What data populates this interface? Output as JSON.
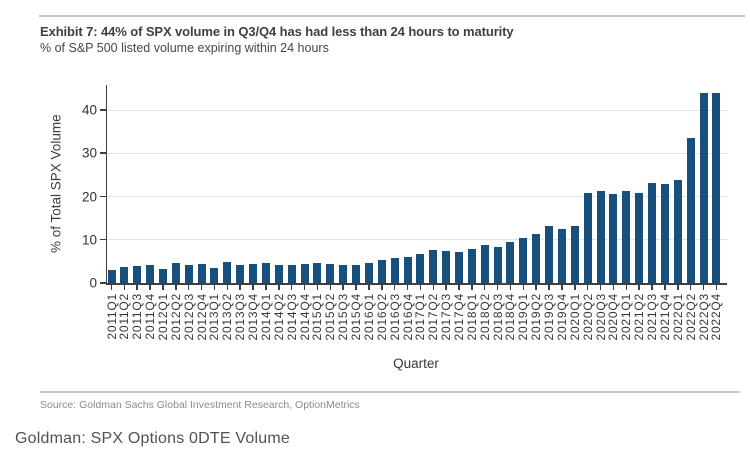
{
  "exhibit": {
    "title": "Exhibit 7: 44% of SPX volume in Q3/Q4 has had less than 24 hours to maturity",
    "subtitle": "% of S&P 500 listed volume expiring within 24 hours",
    "source": "Source: Goldman Sachs Global Investment Research, OptionMetrics"
  },
  "page": {
    "caption": "Goldman: SPX Options 0DTE Volume"
  },
  "colors": {
    "bar": "#17507c",
    "axis": "#3d3f42",
    "grid": "#e3e3e3",
    "rule": "#c8c8c8",
    "source_text": "#8b8b8b",
    "caption_text": "#4e525a"
  },
  "chart_data": {
    "type": "bar",
    "title": "Exhibit 7: 44% of SPX volume in Q3/Q4 has had less than 24 hours to maturity",
    "subtitle": "% of S&P 500 listed volume expiring within 24 hours",
    "xlabel": "Quarter",
    "ylabel": "% of Total SPX Volume",
    "ylim": [
      0,
      45.8
    ],
    "yticks": [
      0,
      10,
      20,
      30,
      40
    ],
    "grid": true,
    "legend": "none",
    "categories": [
      "2011Q1",
      "2011Q2",
      "2011Q3",
      "2011Q4",
      "2012Q1",
      "2012Q2",
      "2012Q3",
      "2012Q4",
      "2013Q1",
      "2013Q2",
      "2013Q3",
      "2013Q4",
      "2014Q1",
      "2014Q2",
      "2014Q3",
      "2014Q4",
      "2015Q1",
      "2015Q2",
      "2015Q3",
      "2015Q4",
      "2016Q1",
      "2016Q2",
      "2016Q3",
      "2016Q4",
      "2017Q1",
      "2017Q2",
      "2017Q3",
      "2017Q4",
      "2018Q1",
      "2018Q2",
      "2018Q3",
      "2018Q4",
      "2019Q1",
      "2019Q2",
      "2019Q3",
      "2019Q4",
      "2020Q1",
      "2020Q2",
      "2020Q3",
      "2020Q4",
      "2021Q1",
      "2021Q2",
      "2021Q3",
      "2021Q4",
      "2022Q1",
      "2022Q2",
      "2022Q3",
      "2022Q4"
    ],
    "values": [
      2.9,
      3.7,
      3.9,
      4.1,
      3.3,
      4.6,
      4.2,
      4.4,
      3.5,
      4.9,
      4.2,
      4.4,
      4.7,
      4.2,
      4.1,
      4.3,
      4.6,
      4.4,
      4.1,
      4.2,
      4.6,
      5.4,
      5.8,
      6.0,
      6.8,
      7.6,
      7.4,
      7.2,
      7.8,
      8.7,
      8.3,
      9.4,
      10.4,
      11.3,
      13.3,
      12.4,
      13.3,
      20.9,
      21.2,
      20.5,
      21.3,
      20.8,
      23.2,
      22.8,
      23.9,
      33.5,
      44.0,
      44.0
    ]
  }
}
